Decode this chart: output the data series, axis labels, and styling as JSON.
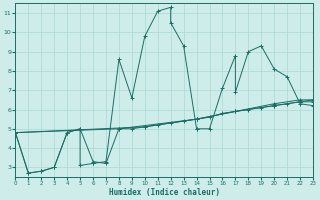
{
  "xlabel": "Humidex (Indice chaleur)",
  "xlim": [
    0,
    23
  ],
  "ylim": [
    2.5,
    11.5
  ],
  "yticks": [
    3,
    4,
    5,
    6,
    7,
    8,
    9,
    10,
    11
  ],
  "xticks": [
    0,
    1,
    2,
    3,
    4,
    5,
    6,
    7,
    8,
    9,
    10,
    11,
    12,
    13,
    14,
    15,
    16,
    17,
    18,
    19,
    20,
    21,
    22,
    23
  ],
  "bg_color": "#cdecea",
  "line_color": "#1a6e64",
  "grid_color": "#a8d8d4",
  "line1_x": [
    0,
    1,
    2,
    3,
    4,
    5,
    5,
    6,
    6,
    7,
    8,
    9,
    10,
    11,
    12,
    12,
    13,
    14,
    14,
    15,
    16,
    17,
    17,
    18,
    19,
    20,
    21,
    22,
    23
  ],
  "line1_y": [
    4.8,
    2.7,
    2.8,
    3.0,
    4.8,
    5.0,
    3.1,
    3.2,
    3.2,
    3.3,
    8.6,
    6.6,
    9.8,
    11.1,
    11.3,
    10.5,
    9.3,
    5.0,
    5.0,
    5.0,
    7.1,
    8.8,
    6.9,
    9.0,
    9.3,
    8.1,
    7.7,
    6.3,
    6.2
  ],
  "line2_x": [
    0,
    1,
    2,
    3,
    4,
    5,
    6,
    7,
    8,
    9,
    10,
    11,
    12,
    13,
    14,
    15,
    16,
    17,
    18,
    19,
    20,
    21,
    22,
    23
  ],
  "line2_y": [
    4.8,
    2.7,
    2.8,
    3.0,
    4.8,
    5.0,
    3.3,
    3.2,
    5.0,
    5.0,
    5.1,
    5.2,
    5.3,
    5.4,
    5.5,
    5.6,
    5.8,
    5.9,
    6.0,
    6.1,
    6.2,
    6.3,
    6.4,
    6.5
  ],
  "line3_x": [
    0,
    8,
    14,
    17,
    20,
    22,
    23
  ],
  "line3_y": [
    4.8,
    5.0,
    5.5,
    5.9,
    6.3,
    6.5,
    6.5
  ],
  "line4_x": [
    0,
    10,
    14,
    17,
    20,
    22,
    23
  ],
  "line4_y": [
    4.8,
    5.1,
    5.5,
    5.9,
    6.2,
    6.4,
    6.4
  ]
}
